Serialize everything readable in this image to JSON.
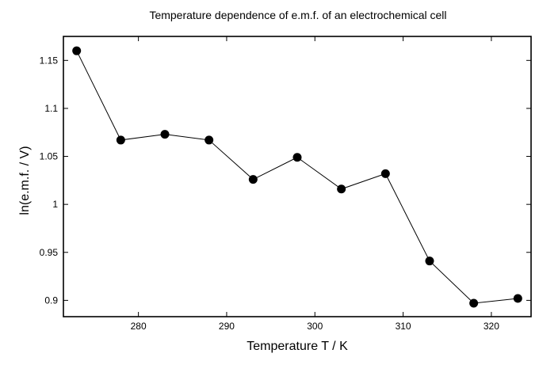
{
  "chart_data": {
    "type": "line",
    "title": "Temperature dependence of e.m.f. of an electrochemical cell",
    "xlabel": "Temperature T / K",
    "ylabel": "ln(e.m.f. / V)",
    "xlim": [
      271.5,
      324.5
    ],
    "ylim": [
      0.883,
      1.175
    ],
    "xticks": [
      280,
      290,
      300,
      310,
      320
    ],
    "xtick_labels": [
      "280",
      "290",
      "300",
      "310",
      "320"
    ],
    "yticks": [
      0.9,
      0.95,
      1.0,
      1.05,
      1.1,
      1.15
    ],
    "ytick_labels": [
      "0.9",
      "0.95",
      "1",
      "1.05",
      "1.1",
      "1.15"
    ],
    "grid": false,
    "legend": "none",
    "series": [
      {
        "x": [
          273,
          278,
          283,
          288,
          293,
          298,
          303,
          308,
          313,
          318,
          323
        ],
        "values": [
          1.16,
          1.067,
          1.073,
          1.067,
          1.026,
          1.049,
          1.016,
          1.032,
          0.941,
          0.897,
          0.902
        ],
        "color": "#000000",
        "marker": "filled-circle"
      }
    ]
  }
}
